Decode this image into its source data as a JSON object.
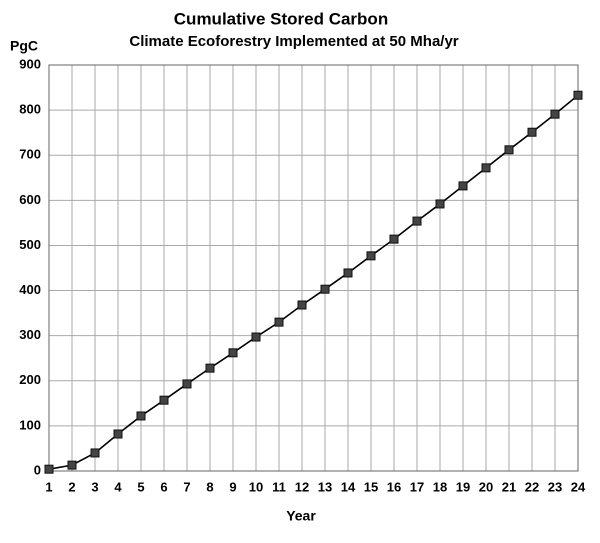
{
  "chart_data": {
    "type": "line",
    "title": "Cumulative Stored Carbon",
    "subtitle": "Climate Ecoforestry Implemented at 50 Mha/yr",
    "y_label": "PgC",
    "x_label": "Year",
    "x": [
      1,
      2,
      3,
      4,
      5,
      6,
      7,
      8,
      9,
      10,
      11,
      12,
      13,
      14,
      15,
      16,
      17,
      18,
      19,
      20,
      21,
      22,
      23,
      24
    ],
    "series": [
      {
        "name": "Cumulative Stored Carbon",
        "color": "#000000",
        "values": [
          4,
          13,
          40,
          82,
          122,
          157,
          193,
          228,
          262,
          297,
          330,
          368,
          403,
          439,
          477,
          514,
          554,
          592,
          632,
          672,
          712,
          751,
          791,
          833
        ]
      }
    ],
    "xlim": [
      1,
      24
    ],
    "xticks": [
      1,
      2,
      3,
      4,
      5,
      6,
      7,
      8,
      9,
      10,
      11,
      12,
      13,
      14,
      15,
      16,
      17,
      18,
      19,
      20,
      21,
      22,
      23,
      24
    ],
    "ylim": [
      0,
      900
    ],
    "yticks": [
      0,
      100,
      200,
      300,
      400,
      500,
      600,
      700,
      800,
      900
    ],
    "grid": true,
    "marker": "square"
  }
}
